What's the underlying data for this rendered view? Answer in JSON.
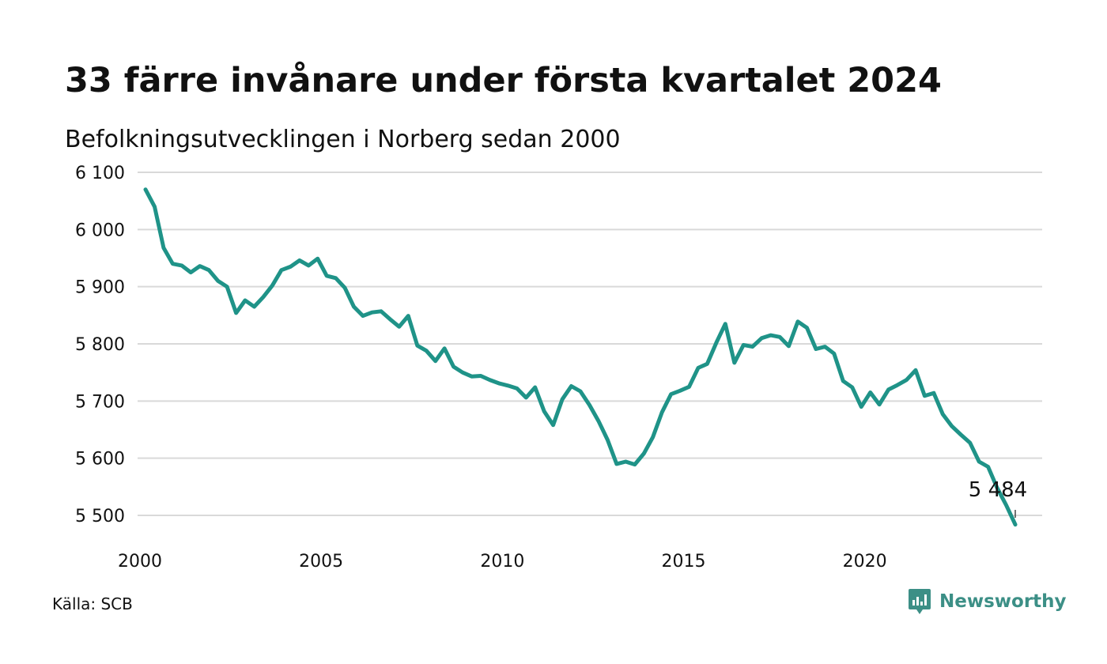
{
  "title": "33 färre invånare under första kvartalet 2024",
  "subtitle": "Befolkningsutvecklingen i Norberg sedan 2000",
  "source": "Källa: SCB",
  "brand": {
    "name": "Newsworthy",
    "icon": "newsworthy-logo-icon",
    "color": "#3c8f86"
  },
  "colors": {
    "line": "#1f9388",
    "grid": "#d9d9d9",
    "text": "#111111"
  },
  "chart_data": {
    "type": "line",
    "title": "33 färre invånare under första kvartalet 2024",
    "subtitle": "Befolkningsutvecklingen i Norberg sedan 2000",
    "xlabel": "",
    "ylabel": "",
    "xlim": [
      2000,
      2024.5
    ],
    "ylim": [
      5490,
      6100
    ],
    "grid": true,
    "y_ticks": [
      5500,
      5600,
      5700,
      5800,
      5900,
      6000,
      6100
    ],
    "y_tick_labels": [
      "5 500",
      "5 600",
      "5 700",
      "5 800",
      "5 900",
      "6 000",
      "6 100"
    ],
    "x_ticks": [
      2000,
      2005,
      2010,
      2015,
      2020
    ],
    "x_tick_labels": [
      "2000",
      "2005",
      "2010",
      "2015",
      "2020"
    ],
    "annotation": {
      "text": "5 484",
      "x": 2024.0,
      "y": 5484
    },
    "x": [
      2000.0,
      2000.25,
      2000.5,
      2000.75,
      2001.0,
      2001.25,
      2001.5,
      2001.75,
      2002.0,
      2002.25,
      2002.5,
      2002.75,
      2003.0,
      2003.25,
      2003.5,
      2003.75,
      2004.0,
      2004.25,
      2004.5,
      2004.75,
      2005.0,
      2005.25,
      2005.5,
      2005.75,
      2006.0,
      2006.25,
      2006.5,
      2006.75,
      2007.0,
      2007.25,
      2007.5,
      2007.75,
      2008.0,
      2008.25,
      2008.5,
      2008.75,
      2009.0,
      2009.25,
      2009.5,
      2009.75,
      2010.0,
      2010.25,
      2010.5,
      2010.75,
      2011.0,
      2011.25,
      2011.5,
      2011.75,
      2012.0,
      2012.25,
      2012.5,
      2012.75,
      2013.0,
      2013.25,
      2013.5,
      2013.75,
      2014.0,
      2014.25,
      2014.5,
      2014.75,
      2015.0,
      2015.25,
      2015.5,
      2015.75,
      2016.0,
      2016.25,
      2016.5,
      2016.75,
      2017.0,
      2017.25,
      2017.5,
      2017.75,
      2018.0,
      2018.25,
      2018.5,
      2018.75,
      2019.0,
      2019.25,
      2019.5,
      2019.75,
      2020.0,
      2020.25,
      2020.5,
      2020.75,
      2021.0,
      2021.25,
      2021.5,
      2021.75,
      2022.0,
      2022.25,
      2022.5,
      2022.75,
      2023.0,
      2023.25,
      2023.5,
      2023.75,
      2024.0
    ],
    "series": [
      {
        "values": [
          6070,
          6040,
          5968,
          5940,
          5937,
          5925,
          5936,
          5929,
          5910,
          5900,
          5854,
          5876,
          5865,
          5882,
          5902,
          5929,
          5935,
          5946,
          5937,
          5949,
          5919,
          5915,
          5898,
          5865,
          5849,
          5855,
          5857,
          5843,
          5830,
          5849,
          5797,
          5788,
          5770,
          5792,
          5760,
          5750,
          5743,
          5744,
          5737,
          5731,
          5727,
          5722,
          5706,
          5724,
          5682,
          5658,
          5703,
          5726,
          5717,
          5693,
          5665,
          5632,
          5590,
          5594,
          5589,
          5608,
          5637,
          5680,
          5712,
          5718,
          5725,
          5758,
          5765,
          5802,
          5835,
          5767,
          5798,
          5795,
          5810,
          5815,
          5812,
          5796,
          5839,
          5828,
          5791,
          5795,
          5783,
          5735,
          5724,
          5690,
          5715,
          5694,
          5720,
          5728,
          5737,
          5754,
          5709,
          5714,
          5677,
          5656,
          5641,
          5627,
          5594,
          5585,
          5548,
          5518,
          5484
        ]
      }
    ]
  }
}
